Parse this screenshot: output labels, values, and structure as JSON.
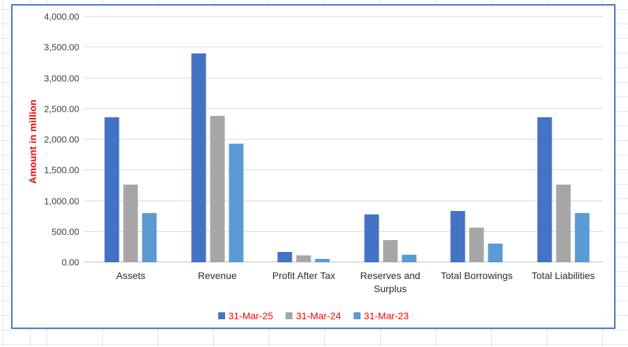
{
  "chart_data": {
    "type": "bar",
    "title": "",
    "xlabel": "",
    "ylabel": "Amount in million",
    "ylim": [
      0,
      4000
    ],
    "ytick_step": 500,
    "ytick_labels": [
      "0.00",
      "500.00",
      "1,000.00",
      "1,500.00",
      "2,000.00",
      "2,500.00",
      "3,000.00",
      "3,500.00",
      "4,000.00"
    ],
    "grid": true,
    "legend_position": "bottom",
    "categories": [
      "Assets",
      "Revenue",
      "Profit After Tax",
      "Reserves and Surplus",
      "Total Borrowings",
      "Total Liabilities"
    ],
    "series": [
      {
        "name": "31-Mar-25",
        "color": "#4472C4",
        "values": [
          2360,
          3400,
          170,
          780,
          840,
          2360
        ]
      },
      {
        "name": "31-Mar-24",
        "color": "#A6A6A6",
        "values": [
          1270,
          2390,
          115,
          360,
          570,
          1270
        ]
      },
      {
        "name": "31-Mar-23",
        "color": "#5B9BD5",
        "values": [
          800,
          1930,
          55,
          130,
          300,
          800
        ]
      }
    ]
  },
  "colors": {
    "chart_border": "#4472C4",
    "plot_gridline": "#D9D9D9",
    "axis_line": "#BFBFBF",
    "axis_text": "#3D3D3D",
    "category_text": "#2B2B2B",
    "ylabel_text": "#FF0000",
    "legend_text": "#FF0000",
    "background": "#FFFFFF"
  }
}
